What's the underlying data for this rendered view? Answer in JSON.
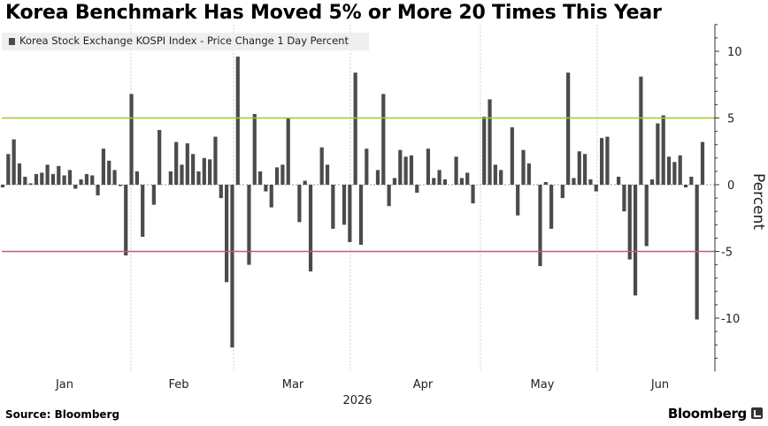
{
  "title": "Korea Benchmark Has Moved 5% or More 20 Times This Year",
  "legend_label": "Korea Stock Exchange KOSPI Index - Price Change 1 Day Percent",
  "source": "Source: Bloomberg",
  "brand": "Bloomberg",
  "colors": {
    "bar": "#4b4b4b",
    "upper_line": "#9acd32",
    "lower_line": "#e05060",
    "axis": "#333333",
    "grid": "#cccccc"
  },
  "chart_data": {
    "type": "bar",
    "ylabel": "Percent",
    "ylim": [
      -14,
      12
    ],
    "yticks": [
      10,
      5,
      0,
      -5,
      -10
    ],
    "reference_lines": [
      5,
      -5
    ],
    "x_year_label": "2026",
    "month_labels": [
      "Jan",
      "Feb",
      "Mar",
      "Apr",
      "May",
      "Jun"
    ],
    "values": [
      -0.2,
      2.3,
      3.4,
      1.6,
      0.6,
      0.1,
      0.8,
      0.9,
      1.5,
      0.8,
      1.4,
      0.7,
      1.1,
      -0.3,
      0.4,
      0.8,
      0.7,
      -0.8,
      2.7,
      1.8,
      1.1,
      -0.1,
      -5.3,
      6.8,
      1.0,
      -3.9,
      0,
      -1.5,
      4.1,
      0,
      1.0,
      3.2,
      1.5,
      3.1,
      2.3,
      1.0,
      2.0,
      1.9,
      3.6,
      -1.0,
      -7.3,
      -12.2,
      9.6,
      0,
      -6.0,
      5.3,
      1.0,
      -0.5,
      -1.7,
      1.3,
      1.5,
      5.0,
      0,
      -2.8,
      0.3,
      -6.5,
      0,
      2.8,
      1.5,
      -3.3,
      0,
      -3.0,
      -4.3,
      8.4,
      -4.5,
      2.7,
      0,
      1.1,
      6.8,
      -1.6,
      0.5,
      2.6,
      2.1,
      2.2,
      -0.6,
      0,
      2.7,
      0.5,
      1.1,
      0.4,
      0,
      2.1,
      0.5,
      0.9,
      -1.4,
      0,
      5.1,
      6.4,
      1.5,
      1.1,
      0,
      4.3,
      -2.3,
      2.6,
      1.6,
      0,
      -6.1,
      0.2,
      -3.3,
      0,
      -1.0,
      8.4,
      0.5,
      2.5,
      2.3,
      0.4,
      -0.5,
      3.5,
      3.6,
      0,
      0.6,
      -2.0,
      -5.6,
      -8.3,
      8.1,
      -4.6,
      0.4,
      4.6,
      5.2,
      2.1,
      1.7,
      2.2,
      -0.2,
      0.6,
      -10.1,
      3.2
    ]
  }
}
